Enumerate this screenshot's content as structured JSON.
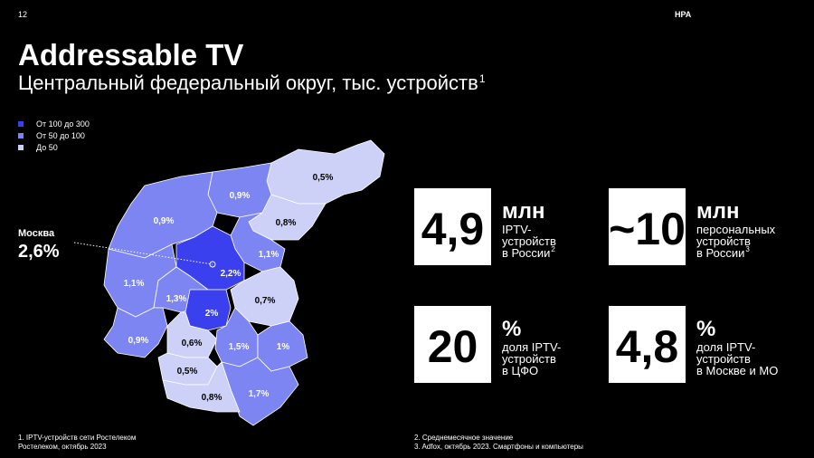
{
  "page_number": "12",
  "brand": "НРА",
  "title": "Addressable TV",
  "subtitle": "Центральный федеральный округ, тыс. устройств",
  "subtitle_note": "1",
  "legend": [
    {
      "label": "От 100 до 300",
      "color": "#3b40ef"
    },
    {
      "label": "От 50 до 100",
      "color": "#7c85f2"
    },
    {
      "label": "До 50",
      "color": "#cdd1f7"
    }
  ],
  "callout": {
    "label": "Москва",
    "value": "2,6%"
  },
  "regions": [
    {
      "label": "0,5%",
      "color": "#cdd1f7"
    },
    {
      "label": "0,9%",
      "color": "#7c85f2"
    },
    {
      "label": "0,8%",
      "color": "#cdd1f7"
    },
    {
      "label": "0,9%",
      "color": "#7c85f2"
    },
    {
      "label": "1,1%",
      "color": "#7c85f2"
    },
    {
      "label": "2,2%",
      "color": "#3b40ef"
    },
    {
      "label": "1,1%",
      "color": "#7c85f2"
    },
    {
      "label": "1,3%",
      "color": "#7c85f2"
    },
    {
      "label": "0,7%",
      "color": "#cdd1f7"
    },
    {
      "label": "2%",
      "color": "#3b40ef"
    },
    {
      "label": "0,9%",
      "color": "#7c85f2"
    },
    {
      "label": "0,6%",
      "color": "#cdd1f7"
    },
    {
      "label": "1,5%",
      "color": "#7c85f2"
    },
    {
      "label": "1%",
      "color": "#7c85f2"
    },
    {
      "label": "0,5%",
      "color": "#cdd1f7"
    },
    {
      "label": "1,7%",
      "color": "#7c85f2"
    },
    {
      "label": "0,8%",
      "color": "#cdd1f7"
    }
  ],
  "stats": [
    {
      "number": "4,9",
      "unit": "млн",
      "lines": [
        "IPTV-",
        "устройств",
        "в России"
      ],
      "note": "2"
    },
    {
      "number": "~10",
      "unit": "млн",
      "lines": [
        "персональных",
        "устройств",
        "в России"
      ],
      "note": "3"
    },
    {
      "number": "20",
      "unit": "%",
      "lines": [
        "доля IPTV-",
        "устройств",
        "в ЦФО"
      ]
    },
    {
      "number": "4,8",
      "unit": "%",
      "lines": [
        "доля IPTV-",
        "устройств",
        "в Москве и МО"
      ]
    }
  ],
  "footnotes_left": [
    "1. IPTV-устройств сети Ростелеком",
    "Ростелеком, октябрь 2023"
  ],
  "footnotes_right": [
    "2. Среднемесячное значение",
    "3. Adfox, октябрь 2023. Смартфоны и компьютеры"
  ]
}
